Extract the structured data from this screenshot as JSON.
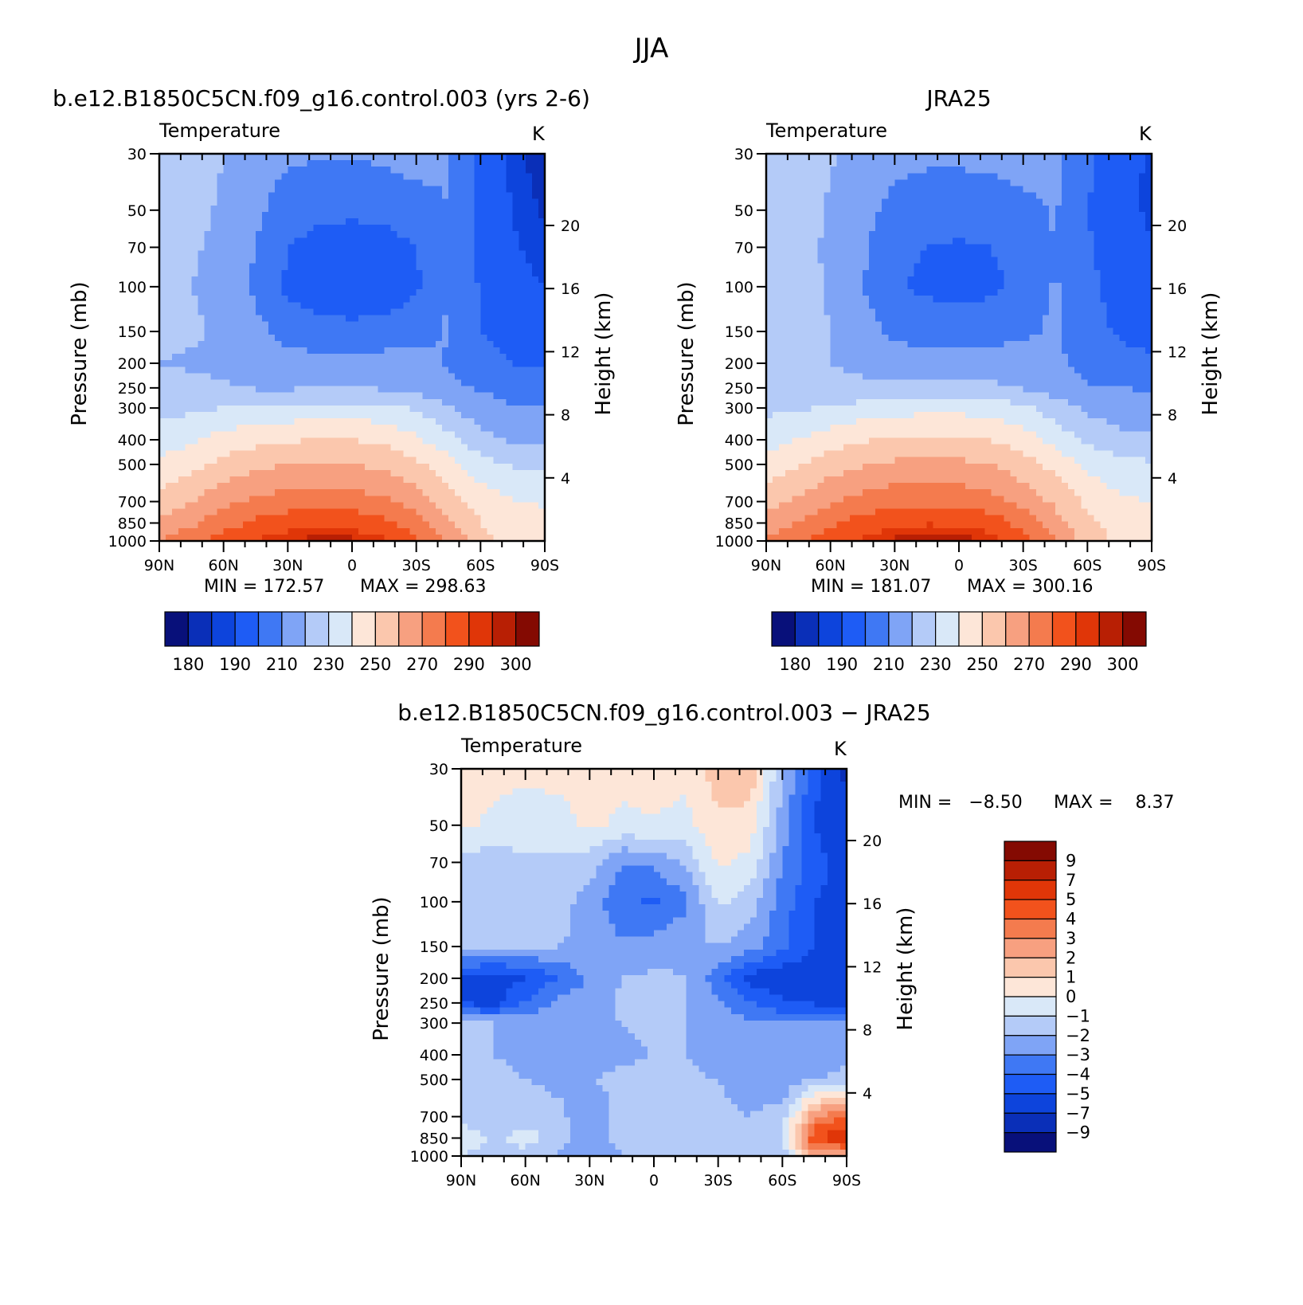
{
  "figure": {
    "title": "JJA"
  },
  "palettes": {
    "temperature": [
      "#08107a",
      "#0a2fb8",
      "#0d44dc",
      "#1e5cf5",
      "#3f78f4",
      "#7fa4f6",
      "#b4cbf8",
      "#d9e8f8",
      "#fde6d8",
      "#fbc7ad",
      "#f7a080",
      "#f47b4e",
      "#f2521c",
      "#e03608",
      "#b81f04",
      "#840a02"
    ],
    "difference": [
      "#08107a",
      "#0a2fb8",
      "#0d44dc",
      "#1e5cf5",
      "#3f78f4",
      "#7fa4f6",
      "#b4cbf8",
      "#d9e8f8",
      "#fde6d8",
      "#fbc7ad",
      "#f7a080",
      "#f47b4e",
      "#f2521c",
      "#e03608",
      "#b81f04",
      "#840a02"
    ]
  },
  "chart_data": [
    {
      "type": "heatmap",
      "title": "b.e12.B1850C5CN.f09_g16.control.003 (yrs 2-6)",
      "variable": "Temperature",
      "units": "K",
      "ylabel": "Pressure (mb)",
      "y2label": "Height (km)",
      "x_ticks": [
        "90N",
        "60N",
        "30N",
        "0",
        "30S",
        "60S",
        "90S"
      ],
      "x_ticks_lat": [
        90,
        60,
        30,
        0,
        -30,
        -60,
        -90
      ],
      "y_ticks": [
        30,
        50,
        70,
        100,
        150,
        200,
        250,
        300,
        400,
        500,
        700,
        850,
        1000
      ],
      "y_range": [
        30,
        1000
      ],
      "y_log": true,
      "y2_ticks": [
        20,
        16,
        12,
        8,
        4
      ],
      "min_label": "MIN = 172.57",
      "max_label": "MAX = 298.63",
      "colorbar_labels": [
        "180",
        "190",
        "210",
        "230",
        "250",
        "270",
        "290",
        "300"
      ],
      "colorbar_orientation": "horizontal",
      "field": {
        "lat": [
          90,
          75,
          60,
          45,
          30,
          15,
          0,
          -15,
          -30,
          -45,
          -60,
          -75,
          -90
        ],
        "p": [
          30,
          50,
          70,
          100,
          150,
          200,
          250,
          300,
          400,
          500,
          700,
          850,
          1000
        ],
        "values": [
          [
            226,
            224,
            220,
            215,
            212,
            211,
            211,
            212,
            214,
            211,
            196,
            188,
            180
          ],
          [
            224,
            222,
            219,
            212,
            205,
            203,
            202,
            203,
            206,
            210,
            197,
            190,
            184
          ],
          [
            223,
            221,
            218,
            210,
            200,
            196,
            195,
            196,
            200,
            209,
            198,
            191,
            186
          ],
          [
            222,
            220,
            218,
            208,
            198,
            193,
            192,
            193,
            198,
            210,
            199,
            194,
            190
          ],
          [
            222,
            221,
            219,
            213,
            206,
            204,
            203,
            204,
            207,
            211,
            200,
            196,
            194
          ],
          [
            220,
            219,
            218,
            216,
            214,
            213,
            213,
            214,
            214,
            209,
            204,
            200,
            198
          ],
          [
            223,
            222,
            221,
            219,
            219,
            219,
            219,
            219,
            216,
            212,
            209,
            206,
            205
          ],
          [
            227,
            228,
            230,
            232,
            233,
            234,
            234,
            233,
            229,
            221,
            214,
            211,
            210
          ],
          [
            234,
            238,
            244,
            247,
            249,
            250,
            250,
            248,
            242,
            233,
            224,
            219,
            217
          ],
          [
            243,
            247,
            253,
            257,
            260,
            261,
            260,
            258,
            252,
            244,
            234,
            229,
            227
          ],
          [
            254,
            260,
            267,
            272,
            275,
            276,
            275,
            272,
            265,
            255,
            246,
            241,
            239
          ],
          [
            262,
            268,
            276,
            282,
            286,
            287,
            286,
            283,
            274,
            261,
            250,
            244,
            243
          ],
          [
            270,
            277,
            284,
            290,
            295,
            298,
            297,
            292,
            282,
            270,
            254,
            247,
            246
          ]
        ]
      }
    },
    {
      "type": "heatmap",
      "title": "JRA25",
      "variable": "Temperature",
      "units": "K",
      "ylabel": "Pressure (mb)",
      "y2label": "Height (km)",
      "x_ticks": [
        "90N",
        "60N",
        "30N",
        "0",
        "30S",
        "60S",
        "90S"
      ],
      "x_ticks_lat": [
        90,
        60,
        30,
        0,
        -30,
        -60,
        -90
      ],
      "y_ticks": [
        30,
        50,
        70,
        100,
        150,
        200,
        250,
        300,
        400,
        500,
        700,
        850,
        1000
      ],
      "y_range": [
        30,
        1000
      ],
      "y_log": true,
      "y2_ticks": [
        20,
        16,
        12,
        8,
        4
      ],
      "min_label": "MIN = 181.07",
      "max_label": "MAX = 300.16",
      "colorbar_labels": [
        "180",
        "190",
        "210",
        "230",
        "250",
        "270",
        "290",
        "300"
      ],
      "colorbar_orientation": "horizontal",
      "field": {
        "lat": [
          90,
          75,
          60,
          45,
          30,
          15,
          0,
          -15,
          -30,
          -45,
          -60,
          -75,
          -90
        ],
        "p": [
          30,
          50,
          70,
          100,
          150,
          200,
          250,
          300,
          400,
          500,
          700,
          850,
          1000
        ],
        "values": [
          [
            226,
            224,
            221,
            217,
            213,
            212,
            212,
            213,
            215,
            212,
            202,
            195,
            188
          ],
          [
            226,
            223,
            219,
            213,
            207,
            205,
            204,
            205,
            207,
            211,
            200,
            194,
            188
          ],
          [
            228,
            222,
            219,
            212,
            203,
            200,
            199,
            200,
            204,
            210,
            201,
            195,
            191
          ],
          [
            229,
            223,
            219,
            210,
            201,
            198,
            197,
            198,
            202,
            211,
            202,
            197,
            194
          ],
          [
            227,
            223,
            220,
            214,
            208,
            206,
            205,
            206,
            208,
            212,
            203,
            199,
            197
          ],
          [
            224,
            222,
            220,
            218,
            215,
            214,
            214,
            215,
            215,
            212,
            206,
            203,
            201
          ],
          [
            225,
            224,
            223,
            222,
            222,
            222,
            222,
            222,
            219,
            215,
            211,
            210,
            209
          ],
          [
            228,
            229,
            231,
            234,
            236,
            237,
            237,
            236,
            232,
            225,
            218,
            215,
            214
          ],
          [
            236,
            240,
            246,
            249,
            251,
            252,
            252,
            250,
            245,
            236,
            228,
            223,
            222
          ],
          [
            245,
            249,
            255,
            259,
            262,
            263,
            262,
            260,
            254,
            247,
            238,
            233,
            231
          ],
          [
            256,
            262,
            269,
            274,
            277,
            278,
            277,
            274,
            267,
            258,
            248,
            242,
            240
          ],
          [
            264,
            270,
            278,
            284,
            288,
            289,
            288,
            285,
            276,
            264,
            252,
            246,
            244
          ],
          [
            272,
            279,
            286,
            292,
            297,
            300,
            299,
            294,
            284,
            272,
            255,
            248,
            247
          ]
        ]
      }
    },
    {
      "type": "heatmap",
      "title": "b.e12.B1850C5CN.f09_g16.control.003 − JRA25",
      "variable": "Temperature",
      "units": "K",
      "ylabel": "Pressure (mb)",
      "y2label": "Height (km)",
      "x_ticks": [
        "90N",
        "60N",
        "30N",
        "0",
        "30S",
        "60S",
        "90S"
      ],
      "x_ticks_lat": [
        90,
        60,
        30,
        0,
        -30,
        -60,
        -90
      ],
      "y_ticks": [
        30,
        50,
        70,
        100,
        150,
        200,
        250,
        300,
        400,
        500,
        700,
        850,
        1000
      ],
      "y_range": [
        30,
        1000
      ],
      "y_log": true,
      "y2_ticks": [
        20,
        16,
        12,
        8,
        4
      ],
      "min_label": "MIN =   −8.50",
      "max_label": "MAX =    8.37",
      "colorbar_labels": [
        "9",
        "7",
        "5",
        "4",
        "3",
        "2",
        "1",
        "0",
        "−1",
        "−2",
        "−3",
        "−4",
        "−5",
        "−7",
        "−9"
      ],
      "colorbar_orientation": "vertical",
      "field": {
        "lat": [
          90,
          75,
          60,
          45,
          30,
          15,
          0,
          -15,
          -30,
          -45,
          -60,
          -75,
          -90
        ],
        "p": [
          30,
          50,
          70,
          100,
          150,
          200,
          250,
          300,
          400,
          500,
          700,
          850,
          1000
        ],
        "values": [
          [
            0.5,
            0.3,
            0.2,
            0.4,
            0.6,
            0.3,
            0.5,
            0.2,
            1.5,
            1.8,
            -2.0,
            -4.5,
            -7.5
          ],
          [
            0.2,
            -0.2,
            -0.5,
            -0.5,
            0.2,
            -0.2,
            -0.1,
            -0.3,
            0.8,
            0.5,
            -2.5,
            -5.0,
            -6.5
          ],
          [
            -1.5,
            -1.5,
            -1.2,
            -1.2,
            -1.5,
            -3.0,
            -2.8,
            -1.8,
            0.2,
            -0.3,
            -3.0,
            -4.5,
            -5.5
          ],
          [
            -1.8,
            -1.2,
            -1.8,
            -1.5,
            -2.5,
            -3.8,
            -4.2,
            -3.2,
            -0.8,
            -1.5,
            -3.5,
            -5.0,
            -5.5
          ],
          [
            -2.0,
            -2.0,
            -2.0,
            -2.0,
            -2.2,
            -2.8,
            -2.5,
            -2.2,
            -2.0,
            -2.5,
            -3.8,
            -5.0,
            -5.0
          ],
          [
            -5.0,
            -5.5,
            -5.0,
            -4.0,
            -2.8,
            -2.0,
            -1.8,
            -2.0,
            -3.5,
            -5.5,
            -5.8,
            -6.0,
            -6.0
          ],
          [
            -5.0,
            -5.5,
            -4.0,
            -2.8,
            -2.5,
            -1.8,
            -1.8,
            -2.0,
            -2.8,
            -3.8,
            -4.8,
            -5.2,
            -5.5
          ],
          [
            -2.0,
            -2.0,
            -2.0,
            -2.2,
            -2.5,
            -2.0,
            -1.8,
            -2.0,
            -2.5,
            -2.8,
            -3.0,
            -2.8,
            -2.5
          ],
          [
            -2.0,
            -2.0,
            -2.2,
            -2.5,
            -2.5,
            -2.2,
            -2.0,
            -2.0,
            -2.5,
            -2.8,
            -3.0,
            -2.5,
            -2.2
          ],
          [
            -2.0,
            -1.8,
            -2.0,
            -2.2,
            -2.0,
            -1.8,
            -1.5,
            -1.8,
            -2.0,
            -2.5,
            -2.8,
            -2.0,
            -1.8
          ],
          [
            -1.5,
            -1.8,
            -1.5,
            -1.8,
            -2.5,
            -1.8,
            -1.5,
            -1.5,
            -1.8,
            -2.0,
            -1.5,
            3.0,
            4.0
          ],
          [
            -0.3,
            -1.2,
            -0.5,
            -1.5,
            -2.5,
            -1.5,
            -1.0,
            -1.5,
            -1.5,
            -1.5,
            -1.0,
            5.0,
            6.0
          ],
          [
            -1.0,
            -1.5,
            -1.5,
            -2.0,
            -3.0,
            -2.0,
            -1.5,
            -1.5,
            -1.2,
            -1.0,
            -1.5,
            2.0,
            2.0
          ]
        ]
      }
    }
  ]
}
